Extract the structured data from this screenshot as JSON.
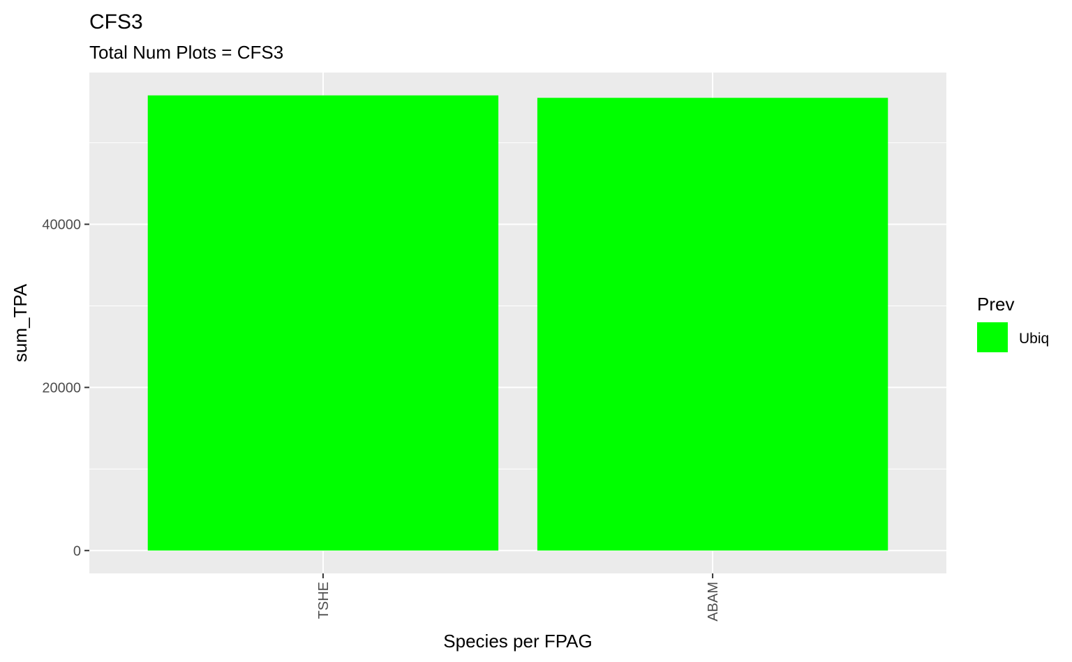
{
  "chart_data": {
    "type": "bar",
    "title": "CFS3",
    "subtitle": "Total Num Plots = CFS3",
    "xlabel": "Species per FPAG",
    "ylabel": "sum_TPA",
    "categories": [
      "TSHE",
      "ABAM"
    ],
    "series": [
      {
        "name": "Ubiq",
        "values": [
          55800,
          55500
        ],
        "color": "#00FF00"
      }
    ],
    "ylim": [
      -2800,
      58600
    ],
    "y_ticks": [
      0,
      20000,
      40000
    ],
    "y_tick_labels": [
      "0",
      "20000",
      "40000"
    ],
    "y_minor_ticks": [
      10000,
      30000,
      50000
    ],
    "x_tick_rotation": -90,
    "grid": true,
    "panel_background": "#EBEBEB",
    "grid_color": "#FFFFFF",
    "legend": {
      "title": "Prev",
      "position": "right",
      "entries": [
        {
          "label": "Ubiq",
          "color": "#00FF00"
        }
      ]
    }
  }
}
